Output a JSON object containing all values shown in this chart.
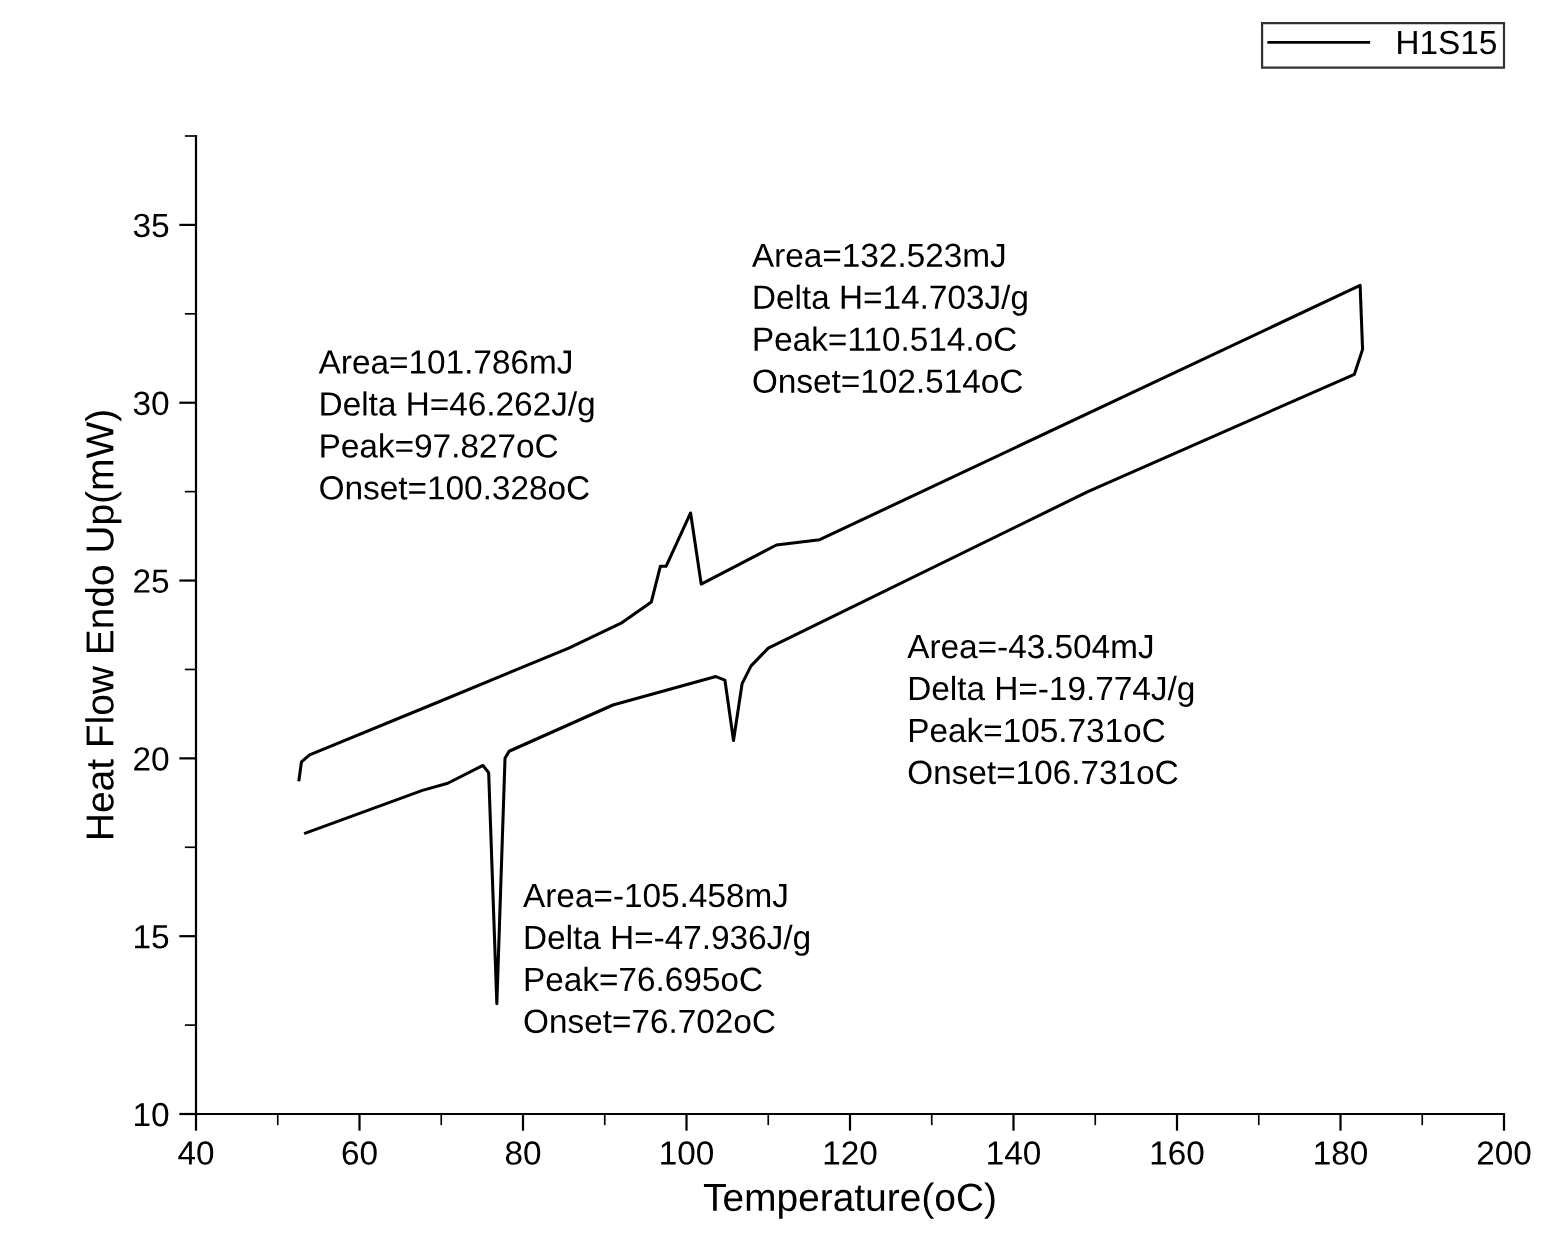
{
  "chart_data": {
    "type": "line",
    "xlabel": "Temperature(oC)",
    "ylabel": "Heat Flow Endo Up(mW)",
    "xlim": [
      40,
      200
    ],
    "ylim": [
      10,
      37.5
    ],
    "xticks": [
      40,
      {
        "value": 50,
        "label": null
      },
      60,
      {
        "value": 70,
        "label": null
      },
      80,
      {
        "value": 90,
        "label": null
      },
      100,
      {
        "value": 110,
        "label": null
      },
      120,
      {
        "value": 130,
        "label": null
      },
      140,
      {
        "value": 150,
        "label": null
      },
      160,
      {
        "value": 170,
        "label": null
      },
      180,
      {
        "value": 190,
        "label": null
      },
      200
    ],
    "yticks": [
      10,
      {
        "value": 12.5,
        "label": null
      },
      15,
      {
        "value": 17.5,
        "label": null
      },
      20,
      {
        "value": 22.5,
        "label": null
      },
      25,
      {
        "value": 27.5,
        "label": null
      },
      30,
      {
        "value": 32.5,
        "label": null
      },
      35,
      {
        "value": 37.5,
        "label": null
      }
    ],
    "grid": false,
    "legend": "top right",
    "marker": "none",
    "line_style": "solid",
    "series": [
      {
        "name": "H1S15",
        "color": "#000000",
        "x": [
          52.6,
          52.9,
          53.9,
          69.8,
          85.6,
          92.0,
          95.7,
          96.8,
          97.5,
          100.5,
          101.8,
          111.0,
          116.3,
          182.4,
          182.7,
          181.7,
          149.1,
          110.0,
          107.9,
          106.8,
          105.75,
          104.7,
          103.6,
          91.0,
          78.3,
          77.8,
          76.8,
          75.8,
          75.1,
          70.8,
          67.7,
          53.4
        ],
        "values": [
          19.4,
          19.9,
          20.1,
          21.6,
          23.1,
          23.8,
          24.4,
          25.4,
          25.4,
          26.9,
          24.9,
          26.0,
          26.15,
          33.3,
          31.5,
          30.8,
          27.5,
          23.1,
          22.6,
          22.1,
          20.5,
          22.2,
          22.3,
          21.5,
          20.2,
          20.0,
          13.1,
          19.6,
          19.8,
          19.3,
          19.1,
          17.9
        ]
      }
    ],
    "annotations": [
      "Area=101.786mJ\nDelta H=46.262J/g\nPeak=97.827oC\nOnset=100.328oC",
      "Area=132.523mJ\nDelta H=14.703J/g\nPeak=110.514.oC\nOnset=102.514oC",
      "Area=-43.504mJ\nDelta H=-19.774J/g\nPeak=105.731oC\nOnset=106.731oC",
      "Area=-105.458mJ\nDelta H=-47.936J/g\nPeak=76.695oC\nOnset=76.702oC"
    ]
  }
}
